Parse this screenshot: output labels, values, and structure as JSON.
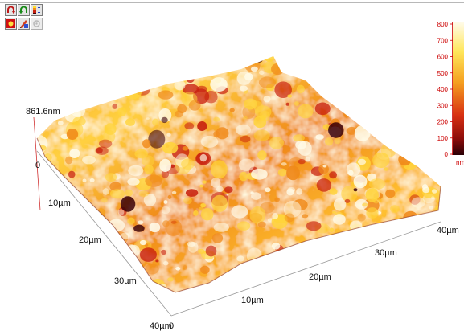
{
  "toolbar": {
    "buttons": [
      {
        "name": "rotate-left-button",
        "icon": "rotate-left-icon"
      },
      {
        "name": "rotate-right-button",
        "icon": "rotate-right-icon"
      },
      {
        "name": "color-scale-button",
        "icon": "color-scale-icon"
      },
      {
        "name": "light-source-button",
        "icon": "light-source-icon"
      },
      {
        "name": "palette-button",
        "icon": "palette-icon"
      },
      {
        "name": "settings-button",
        "icon": "settings-icon",
        "disabled": true
      }
    ]
  },
  "axes": {
    "z_max_label": "861.6nm",
    "z_zero_label": "0",
    "left_axis_ticks": [
      "10µm",
      "20µm",
      "30µm"
    ],
    "left_axis_end": "40µm",
    "front_axis_start": "0",
    "front_axis_ticks": [
      "10µm",
      "20µm",
      "30µm"
    ],
    "front_axis_end": "40µm"
  },
  "colorbar": {
    "ticks": [
      "800",
      "700",
      "600",
      "500",
      "400",
      "300",
      "200",
      "100",
      "0"
    ],
    "unit": "nm",
    "label_color": "#cc0000"
  },
  "colors": {
    "low": "#3a0008",
    "mid_low": "#c8200e",
    "mid": "#f08a1a",
    "mid_high": "#ffd43a",
    "high": "#fffbe8"
  }
}
